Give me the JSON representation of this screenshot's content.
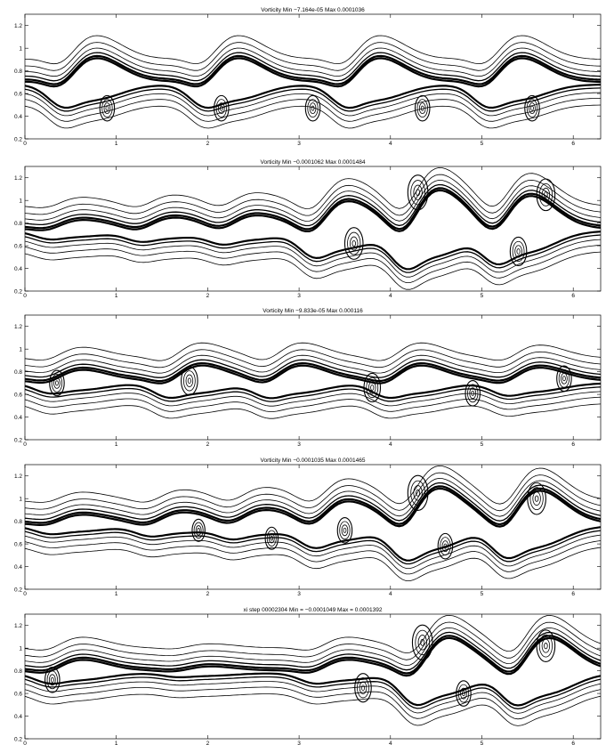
{
  "figure": {
    "colors": {
      "background": "#ffffff",
      "lines": "#000000"
    }
  },
  "chart_data": [
    {
      "type": "contour",
      "title": "Vorticity  Min −7.164e-05  Max 0.0001036",
      "xlim": [
        0,
        6.3
      ],
      "ylim": [
        0.2,
        1.3
      ],
      "xticks": [
        0,
        1,
        2,
        3,
        4,
        5,
        6
      ],
      "yticks": [
        0.2,
        0.4,
        0.6,
        0.8,
        1,
        1.2
      ],
      "xtick_labels": [
        "0",
        "1",
        "2",
        "3",
        "4",
        "5",
        "6"
      ],
      "ytick_labels": [
        "0.2",
        "0.4",
        "0.6",
        "0.8",
        "1",
        "1.2"
      ],
      "field_min": -7.164e-05,
      "field_max": 0.0001036,
      "shear_layer_center": 0.7,
      "billows": [
        {
          "x": 0.75,
          "amp": 0.22
        },
        {
          "x": 2.3,
          "amp": 0.22
        },
        {
          "x": 3.85,
          "amp": 0.22
        },
        {
          "x": 5.4,
          "amp": 0.22
        }
      ],
      "vortex_cores": [
        {
          "x": 0.9,
          "y": 0.47,
          "r": 0.08
        },
        {
          "x": 2.15,
          "y": 0.47,
          "r": 0.08
        },
        {
          "x": 3.15,
          "y": 0.47,
          "r": 0.08
        },
        {
          "x": 4.35,
          "y": 0.47,
          "r": 0.08
        },
        {
          "x": 5.55,
          "y": 0.47,
          "r": 0.08
        }
      ]
    },
    {
      "type": "contour",
      "title": "Vorticity  Min −0.0001062  Max 0.0001484",
      "xlim": [
        0,
        6.3
      ],
      "ylim": [
        0.2,
        1.3
      ],
      "xticks": [
        0,
        1,
        2,
        3,
        4,
        5,
        6
      ],
      "yticks": [
        0.2,
        0.4,
        0.6,
        0.8,
        1,
        1.2
      ],
      "xtick_labels": [
        "0",
        "1",
        "2",
        "3",
        "4",
        "5",
        "6"
      ],
      "ytick_labels": [
        "0.2",
        "0.4",
        "0.6",
        "0.8",
        "1",
        "1.2"
      ],
      "field_min": -0.0001062,
      "field_max": 0.0001484,
      "shear_layer_center": 0.75,
      "billows": [
        {
          "x": 0.6,
          "amp": 0.08
        },
        {
          "x": 1.6,
          "amp": 0.1
        },
        {
          "x": 2.5,
          "amp": 0.12
        },
        {
          "x": 3.5,
          "amp": 0.25
        },
        {
          "x": 4.5,
          "amp": 0.35
        },
        {
          "x": 5.5,
          "amp": 0.3
        }
      ],
      "vortex_cores": [
        {
          "x": 3.6,
          "y": 0.62,
          "r": 0.1
        },
        {
          "x": 4.3,
          "y": 1.07,
          "r": 0.11
        },
        {
          "x": 5.4,
          "y": 0.55,
          "r": 0.09
        },
        {
          "x": 5.7,
          "y": 1.05,
          "r": 0.1
        }
      ]
    },
    {
      "type": "contour",
      "title": "Vorticity  Min −9.833e-05  Max 0.000116",
      "xlim": [
        0,
        6.3
      ],
      "ylim": [
        0.2,
        1.3
      ],
      "xticks": [
        0,
        1,
        2,
        3,
        4,
        5,
        6
      ],
      "yticks": [
        0.2,
        0.4,
        0.6,
        0.8,
        1,
        1.2
      ],
      "xtick_labels": [
        "0",
        "1",
        "2",
        "3",
        "4",
        "5",
        "6"
      ],
      "ytick_labels": [
        "0.2",
        "0.4",
        "0.6",
        "0.8",
        "1",
        "1.2"
      ],
      "field_min": -9.833e-05,
      "field_max": 0.000116,
      "shear_layer_center": 0.72,
      "billows": [
        {
          "x": 0.6,
          "amp": 0.1
        },
        {
          "x": 1.9,
          "amp": 0.14
        },
        {
          "x": 3.0,
          "amp": 0.14
        },
        {
          "x": 4.3,
          "amp": 0.14
        },
        {
          "x": 5.6,
          "amp": 0.12
        }
      ],
      "vortex_cores": [
        {
          "x": 0.35,
          "y": 0.7,
          "r": 0.08
        },
        {
          "x": 1.8,
          "y": 0.72,
          "r": 0.09
        },
        {
          "x": 3.8,
          "y": 0.66,
          "r": 0.09
        },
        {
          "x": 4.9,
          "y": 0.61,
          "r": 0.08
        },
        {
          "x": 5.9,
          "y": 0.74,
          "r": 0.08
        }
      ]
    },
    {
      "type": "contour",
      "title": "Vorticity  Min −0.0001035  Max 0.0001465",
      "xlim": [
        0,
        6.3
      ],
      "ylim": [
        0.2,
        1.3
      ],
      "xticks": [
        0,
        1,
        2,
        3,
        4,
        5,
        6
      ],
      "yticks": [
        0.2,
        0.4,
        0.6,
        0.8,
        1,
        1.2
      ],
      "xtick_labels": [
        "0",
        "1",
        "2",
        "3",
        "4",
        "5",
        "6"
      ],
      "ytick_labels": [
        "0.2",
        "0.4",
        "0.6",
        "0.8",
        "1",
        "1.2"
      ],
      "field_min": -0.0001035,
      "field_max": 0.0001465,
      "shear_layer_center": 0.78,
      "billows": [
        {
          "x": 0.6,
          "amp": 0.08
        },
        {
          "x": 1.7,
          "amp": 0.1
        },
        {
          "x": 2.6,
          "amp": 0.12
        },
        {
          "x": 3.5,
          "amp": 0.2
        },
        {
          "x": 4.5,
          "amp": 0.32
        },
        {
          "x": 5.6,
          "amp": 0.3
        }
      ],
      "vortex_cores": [
        {
          "x": 1.9,
          "y": 0.72,
          "r": 0.07
        },
        {
          "x": 2.7,
          "y": 0.65,
          "r": 0.07
        },
        {
          "x": 3.5,
          "y": 0.72,
          "r": 0.08
        },
        {
          "x": 4.3,
          "y": 1.05,
          "r": 0.11
        },
        {
          "x": 4.6,
          "y": 0.58,
          "r": 0.08
        },
        {
          "x": 5.6,
          "y": 1.0,
          "r": 0.1
        }
      ]
    },
    {
      "type": "contour",
      "title": "xi  step 00002304  Min = −0.0001049  Max = 0.0001392",
      "xlim": [
        0,
        6.3
      ],
      "ylim": [
        0.2,
        1.3
      ],
      "xticks": [
        0,
        1,
        2,
        3,
        4,
        5,
        6
      ],
      "yticks": [
        0.2,
        0.4,
        0.6,
        0.8,
        1,
        1.2
      ],
      "xtick_labels": [
        "0",
        "1",
        "2",
        "3",
        "4",
        "5",
        "6"
      ],
      "ytick_labels": [
        "0.2",
        "0.4",
        "0.6",
        "0.8",
        "1",
        "1.2"
      ],
      "field_min": -0.0001049,
      "field_max": 0.0001392,
      "shear_layer_center": 0.8,
      "billows": [
        {
          "x": 0.6,
          "amp": 0.1
        },
        {
          "x": 2.0,
          "amp": 0.04
        },
        {
          "x": 3.5,
          "amp": 0.1
        },
        {
          "x": 4.6,
          "amp": 0.3
        },
        {
          "x": 5.7,
          "amp": 0.3
        }
      ],
      "vortex_cores": [
        {
          "x": 0.3,
          "y": 0.72,
          "r": 0.08
        },
        {
          "x": 3.7,
          "y": 0.65,
          "r": 0.09
        },
        {
          "x": 4.35,
          "y": 1.05,
          "r": 0.11
        },
        {
          "x": 4.8,
          "y": 0.6,
          "r": 0.08
        },
        {
          "x": 5.7,
          "y": 1.02,
          "r": 0.1
        }
      ]
    }
  ]
}
